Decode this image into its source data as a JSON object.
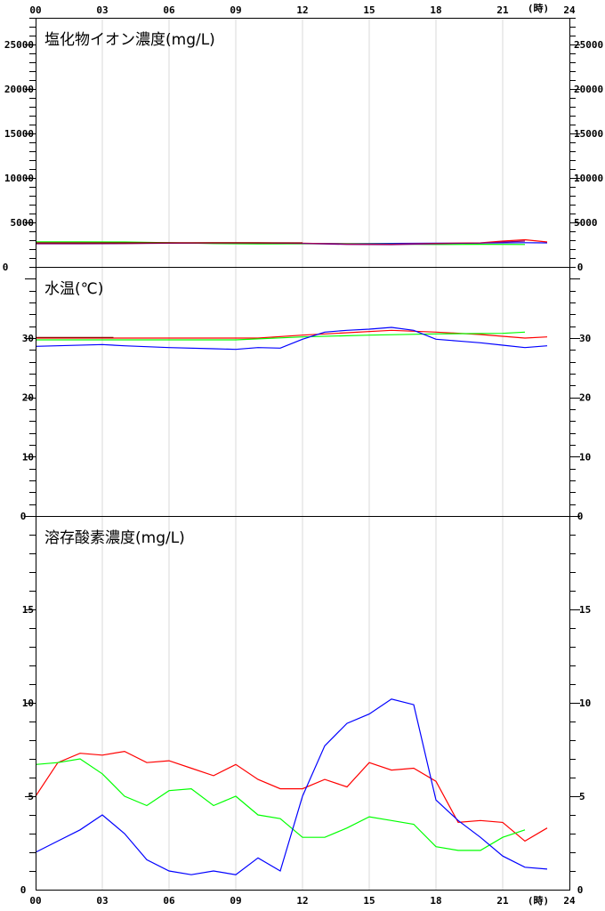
{
  "hour_unit": "(時)",
  "x_ticks": [
    "00",
    "03",
    "06",
    "09",
    "12",
    "15",
    "18",
    "21",
    "24"
  ],
  "series_colors": [
    "#ff0000",
    "#00ff00",
    "#0000ff",
    "#8b0000",
    "#800080",
    "#008080"
  ],
  "chart_data": [
    {
      "type": "line",
      "title": "塩化物イオン濃度(mg/L)",
      "xlabel": "(時)",
      "ylabel": "",
      "x_range": [
        0,
        24
      ],
      "ylim": [
        0,
        28000
      ],
      "yticks": [
        0,
        5000,
        10000,
        15000,
        20000,
        25000
      ],
      "grid": "vertical",
      "series": [
        {
          "color": "#0000ff",
          "x": [
            0,
            2,
            4,
            6,
            8,
            10,
            12,
            14,
            16,
            18,
            20,
            22,
            23
          ],
          "y": [
            2650,
            2660,
            2660,
            2680,
            2660,
            2650,
            2640,
            2620,
            2640,
            2660,
            2680,
            2720,
            2700
          ]
        },
        {
          "color": "#00ff00",
          "x": [
            0,
            2,
            4,
            6,
            8,
            10,
            12,
            14,
            16,
            18,
            20,
            22
          ],
          "y": [
            2820,
            2820,
            2800,
            2720,
            2620,
            2580,
            2600,
            2600,
            2560,
            2520,
            2540,
            2520
          ]
        },
        {
          "color": "#ff0000",
          "x": [
            0,
            2,
            4,
            6,
            8,
            10,
            12,
            14,
            16,
            18,
            20,
            21,
            22,
            23
          ],
          "y": [
            2620,
            2620,
            2640,
            2680,
            2700,
            2700,
            2660,
            2560,
            2540,
            2640,
            2700,
            2900,
            3050,
            2800
          ]
        },
        {
          "color": "#800080",
          "x": [
            0,
            2,
            4,
            6,
            8,
            10,
            12,
            14,
            16,
            18,
            20,
            22
          ],
          "y": [
            2600,
            2600,
            2620,
            2660,
            2680,
            2680,
            2640,
            2520,
            2500,
            2600,
            2680,
            2900
          ]
        },
        {
          "color": "#8b0000",
          "x": [
            0,
            3,
            6,
            9,
            12
          ],
          "y": [
            2700,
            2700,
            2720,
            2720,
            2700
          ]
        }
      ]
    },
    {
      "type": "line",
      "title": "水温(℃)",
      "xlabel": "(時)",
      "ylabel": "",
      "x_range": [
        0,
        24
      ],
      "ylim": [
        0,
        42
      ],
      "yticks": [
        0,
        10,
        20,
        30
      ],
      "grid": "vertical",
      "series": [
        {
          "color": "#ff0000",
          "x": [
            0,
            3.5,
            10,
            12,
            16,
            18,
            20,
            22,
            23
          ],
          "y": [
            30.0,
            30.0,
            30.0,
            30.5,
            31.3,
            31.0,
            30.6,
            30.0,
            30.2
          ]
        },
        {
          "color": "#00ff00",
          "x": [
            0,
            3,
            6,
            9,
            12,
            15,
            18,
            21,
            22
          ],
          "y": [
            29.7,
            29.7,
            29.7,
            29.7,
            30.2,
            30.5,
            30.7,
            30.8,
            31.0
          ]
        },
        {
          "color": "#0000ff",
          "x": [
            0,
            3,
            4,
            6,
            8,
            9,
            10,
            11,
            12,
            13,
            14,
            15,
            16,
            17,
            18,
            19,
            20,
            21,
            22,
            23
          ],
          "y": [
            28.6,
            28.9,
            28.7,
            28.4,
            28.2,
            28.1,
            28.4,
            28.3,
            29.8,
            31.0,
            31.3,
            31.5,
            31.8,
            31.3,
            29.8,
            29.5,
            29.2,
            28.8,
            28.4,
            28.7
          ]
        },
        {
          "color": "#8b0000",
          "x": [
            0,
            3.5
          ],
          "y": [
            30.1,
            30.1
          ]
        }
      ]
    },
    {
      "type": "line",
      "title": "溶存酸素濃度(mg/L)",
      "xlabel": "(時)",
      "ylabel": "",
      "x_range": [
        0,
        24
      ],
      "ylim": [
        0,
        20
      ],
      "yticks": [
        0,
        5,
        10,
        15
      ],
      "grid": "vertical",
      "series": [
        {
          "color": "#ff0000",
          "x": [
            0,
            1,
            2,
            3,
            4,
            5,
            6,
            7,
            8,
            9,
            10,
            11,
            12,
            13,
            14,
            15,
            16,
            17,
            18,
            19,
            20,
            21,
            22,
            23
          ],
          "y": [
            5.0,
            6.8,
            7.3,
            7.2,
            7.4,
            6.8,
            6.9,
            6.5,
            6.1,
            6.7,
            5.9,
            5.4,
            5.4,
            5.9,
            5.5,
            6.8,
            6.4,
            6.5,
            5.8,
            3.6,
            3.7,
            3.6,
            2.6,
            3.3
          ]
        },
        {
          "color": "#00ff00",
          "x": [
            0,
            1,
            2,
            3,
            4,
            5,
            6,
            7,
            8,
            9,
            10,
            11,
            12,
            13,
            14,
            15,
            16,
            17,
            18,
            19,
            20,
            21,
            22
          ],
          "y": [
            6.7,
            6.8,
            7.0,
            6.2,
            5.0,
            4.5,
            5.3,
            5.4,
            4.5,
            5.0,
            4.0,
            3.8,
            2.8,
            2.8,
            3.3,
            3.9,
            3.7,
            3.5,
            2.3,
            2.1,
            2.1,
            2.8,
            3.2
          ]
        },
        {
          "color": "#0000ff",
          "x": [
            0,
            1,
            2,
            3,
            4,
            5,
            6,
            7,
            8,
            9,
            10,
            11,
            12,
            13,
            14,
            15,
            16,
            17,
            18,
            19,
            20,
            21,
            22,
            23
          ],
          "y": [
            2.0,
            2.6,
            3.2,
            4.0,
            3.0,
            1.6,
            1.0,
            0.8,
            1.0,
            0.8,
            1.7,
            1.0,
            5.0,
            7.7,
            8.9,
            9.4,
            10.2,
            9.9,
            4.8,
            3.7,
            2.8,
            1.8,
            1.2,
            1.1
          ]
        }
      ]
    }
  ]
}
